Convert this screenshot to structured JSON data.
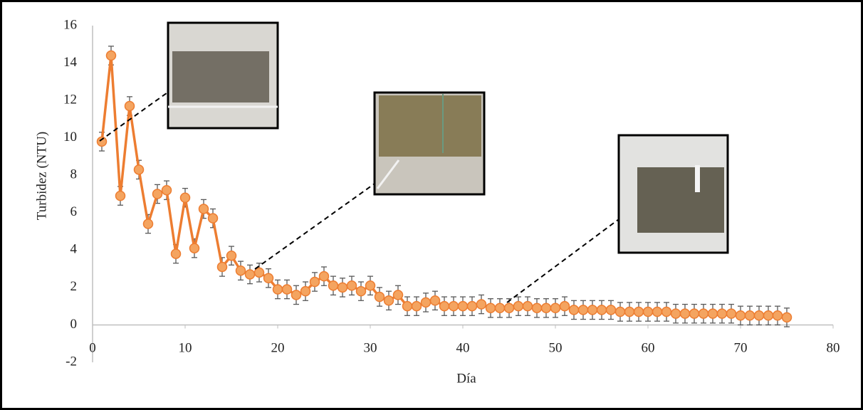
{
  "chart_data": {
    "type": "line",
    "x_label": "Día",
    "y_label": "Turbidez (NTU)",
    "x": [
      1,
      2,
      3,
      4,
      5,
      6,
      7,
      8,
      9,
      10,
      11,
      12,
      13,
      14,
      15,
      16,
      17,
      18,
      19,
      20,
      21,
      22,
      23,
      24,
      25,
      26,
      27,
      28,
      29,
      30,
      31,
      32,
      33,
      34,
      35,
      36,
      37,
      38,
      39,
      40,
      41,
      42,
      43,
      44,
      45,
      46,
      47,
      48,
      49,
      50,
      51,
      52,
      53,
      54,
      55,
      56,
      57,
      58,
      59,
      60,
      61,
      62,
      63,
      64,
      65,
      66,
      67,
      68,
      69,
      70,
      71,
      72,
      73,
      74,
      75
    ],
    "series": [
      {
        "color": "#ed7d31",
        "values": [
          9.8,
          14.4,
          6.9,
          11.7,
          8.3,
          5.4,
          7.0,
          7.2,
          3.8,
          6.8,
          4.1,
          6.2,
          5.7,
          3.1,
          3.7,
          2.9,
          2.7,
          2.8,
          2.5,
          1.9,
          1.9,
          1.6,
          1.8,
          2.3,
          2.6,
          2.1,
          2.0,
          2.1,
          1.8,
          2.1,
          1.5,
          1.3,
          1.6,
          1.0,
          1.0,
          1.2,
          1.3,
          1.0,
          1.0,
          1.0,
          1.0,
          1.1,
          0.9,
          0.9,
          0.9,
          1.0,
          1.0,
          0.9,
          0.9,
          0.9,
          1.0,
          0.8,
          0.8,
          0.8,
          0.8,
          0.8,
          0.7,
          0.7,
          0.7,
          0.7,
          0.7,
          0.7,
          0.6,
          0.6,
          0.6,
          0.6,
          0.6,
          0.6,
          0.6,
          0.5,
          0.5,
          0.5,
          0.5,
          0.5,
          0.4
        ],
        "errors": [
          0.5,
          0.5,
          0.5,
          0.5,
          0.5,
          0.5,
          0.5,
          0.5,
          0.5,
          0.5,
          0.5,
          0.5,
          0.5,
          0.5,
          0.5,
          0.5,
          0.5,
          0.5,
          0.5,
          0.5,
          0.5,
          0.5,
          0.5,
          0.5,
          0.5,
          0.5,
          0.5,
          0.5,
          0.5,
          0.5,
          0.5,
          0.5,
          0.5,
          0.5,
          0.5,
          0.5,
          0.5,
          0.5,
          0.5,
          0.5,
          0.5,
          0.5,
          0.5,
          0.5,
          0.5,
          0.5,
          0.5,
          0.5,
          0.5,
          0.5,
          0.5,
          0.5,
          0.5,
          0.5,
          0.5,
          0.5,
          0.5,
          0.5,
          0.5,
          0.5,
          0.5,
          0.5,
          0.5,
          0.5,
          0.5,
          0.5,
          0.5,
          0.5,
          0.5,
          0.5,
          0.5,
          0.5,
          0.5,
          0.5,
          0.5
        ]
      }
    ],
    "xlim": [
      0,
      80
    ],
    "xticks": [
      0,
      10,
      20,
      30,
      40,
      50,
      60,
      70,
      80
    ],
    "ylim": [
      -2,
      16
    ],
    "yticks": [
      -2,
      0,
      2,
      4,
      6,
      8,
      10,
      12,
      14,
      16
    ],
    "grid": false
  }
}
